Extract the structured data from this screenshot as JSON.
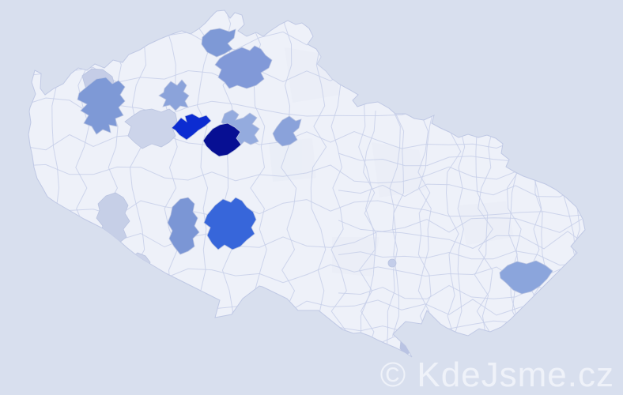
{
  "watermark": {
    "text": "© KdeJsme.cz",
    "color": "#eff2f9"
  },
  "map": {
    "background_color": "#d8dfee",
    "land_color": "#eef1f9",
    "land_shade_color": "#e8ecf6",
    "border_color": "#c7cfe9",
    "outline_color": "#bfc8e4",
    "palette": {
      "lightest": "#ccd4ea",
      "light": "#b9c3e3",
      "medium_light": "#94abde",
      "medium": "#7e99d6",
      "strong": "#3766da",
      "bright": "#0c2cd1",
      "darkest": "#070f93"
    },
    "districts": [
      {
        "id": "district-1",
        "shade": "medium",
        "color": "#7e99d6"
      },
      {
        "id": "district-2",
        "shade": "medium",
        "color": "#8199d8"
      },
      {
        "id": "district-3",
        "shade": "lightest",
        "color": "#c5cde7"
      },
      {
        "id": "district-4",
        "shade": "medium",
        "color": "#7e99d6"
      },
      {
        "id": "district-5",
        "shade": "medium-light",
        "color": "#8ba3da"
      },
      {
        "id": "district-6",
        "shade": "lightest",
        "color": "#ccd4ea"
      },
      {
        "id": "district-7",
        "shade": "bright",
        "color": "#0c2cd1"
      },
      {
        "id": "district-8",
        "shade": "medium-light",
        "color": "#94abde"
      },
      {
        "id": "district-9",
        "shade": "darkest",
        "color": "#070f93"
      },
      {
        "id": "district-10",
        "shade": "medium",
        "color": "#8aa2da"
      },
      {
        "id": "district-11",
        "shade": "medium",
        "color": "#7b96d5"
      },
      {
        "id": "district-12",
        "shade": "strong",
        "color": "#3766da"
      },
      {
        "id": "district-13",
        "shade": "lightest",
        "color": "#c6cfe7"
      },
      {
        "id": "district-14",
        "shade": "lightest",
        "color": "#ccd3e9"
      },
      {
        "id": "district-15",
        "shade": "lightest",
        "color": "#c9d1e8"
      },
      {
        "id": "district-16",
        "shade": "medium-light",
        "color": "#8ba5dc"
      },
      {
        "id": "district-17",
        "shade": "light",
        "color": "#b9c3e3"
      },
      {
        "id": "district-18",
        "shade": "lightest",
        "color": "#c3cde9"
      }
    ]
  }
}
